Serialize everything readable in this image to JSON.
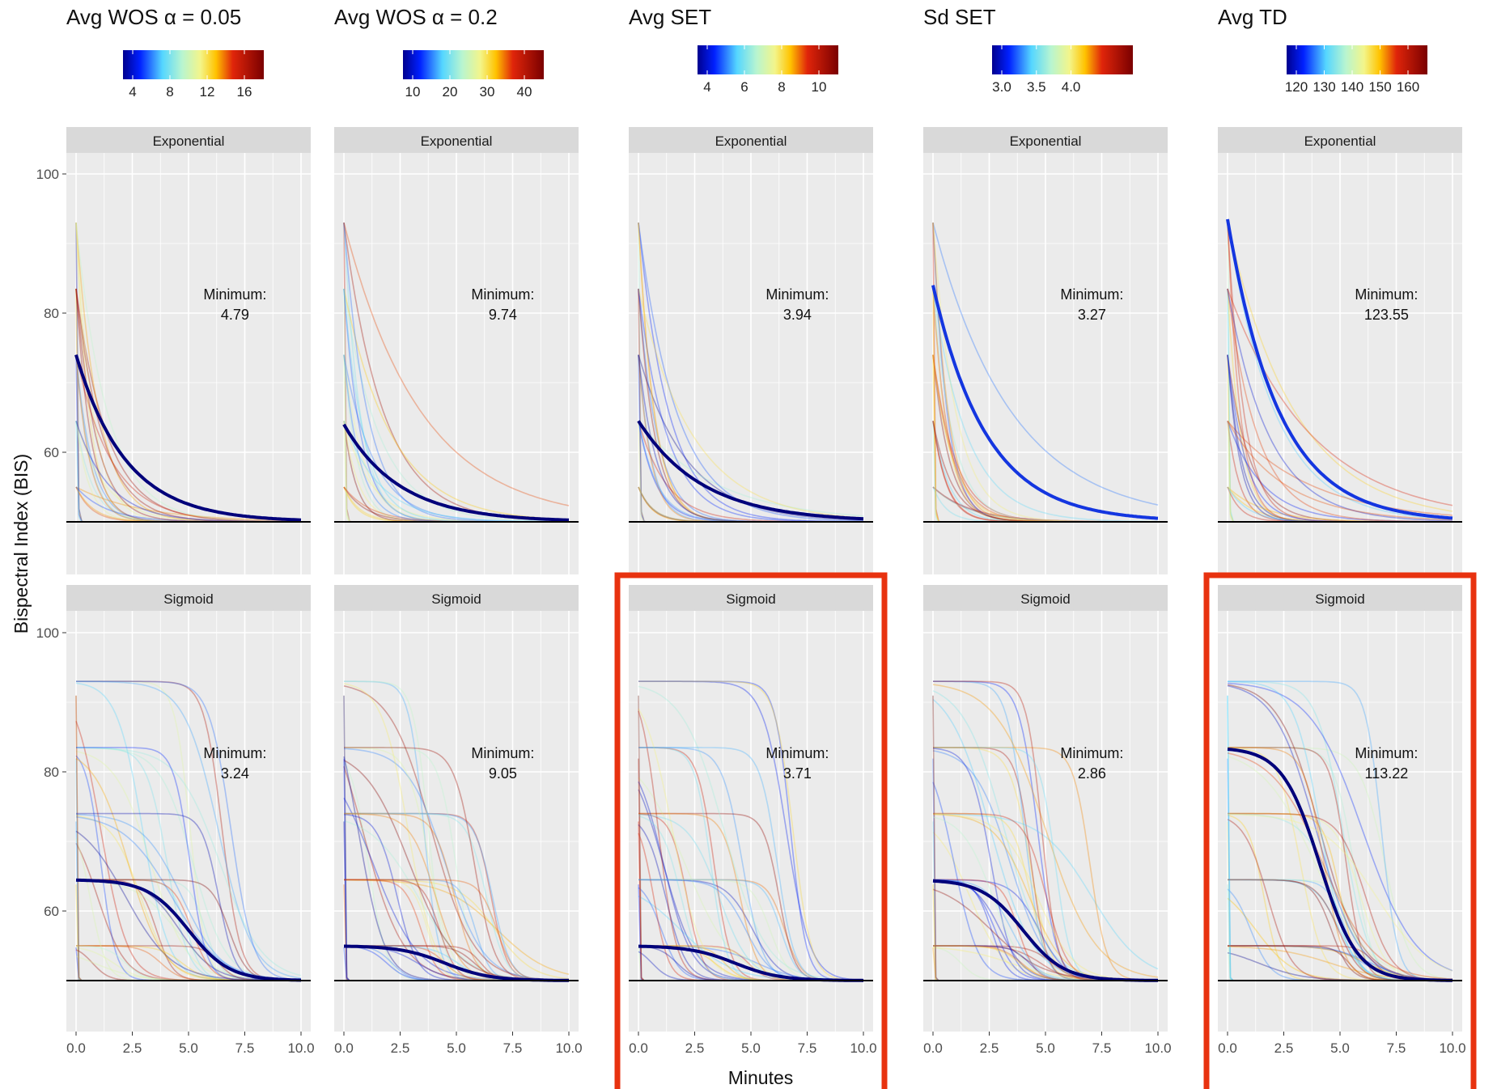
{
  "chart_data": {
    "type": "line",
    "x_label": "Minutes",
    "y_label": "Bispectral Index (BIS)",
    "x_range": [
      0,
      10
    ],
    "y_range": [
      45,
      105
    ],
    "x_ticks": [
      "0.0",
      "2.5",
      "5.0",
      "7.5",
      "10.0"
    ],
    "y_ticks": [
      "60",
      "80",
      "100"
    ],
    "baseline": 50,
    "row_labels": [
      "Exponential",
      "Sigmoid"
    ],
    "annotation_label": "Minimum:",
    "grid": true,
    "legend_position": "top",
    "highlight_color": "#e8320f",
    "columns": [
      {
        "title": "Avg WOS  α = 0.05",
        "colorbar_ticks": [
          "4",
          "8",
          "12",
          "16"
        ],
        "minimum": {
          "exponential": "4.79",
          "sigmoid": "3.24"
        },
        "highlighted": {
          "exponential": false,
          "sigmoid": false
        }
      },
      {
        "title": "Avg WOS  α = 0.2",
        "colorbar_ticks": [
          "10",
          "20",
          "30",
          "40"
        ],
        "minimum": {
          "exponential": "9.74",
          "sigmoid": "9.05"
        },
        "highlighted": {
          "exponential": false,
          "sigmoid": false
        }
      },
      {
        "title": "Avg SET",
        "colorbar_ticks": [
          "4",
          "6",
          "8",
          "10"
        ],
        "minimum": {
          "exponential": "3.94",
          "sigmoid": "3.71"
        },
        "highlighted": {
          "exponential": false,
          "sigmoid": true
        }
      },
      {
        "title": "Sd SET",
        "colorbar_ticks": [
          "3.0",
          "3.5",
          "4.0"
        ],
        "minimum": {
          "exponential": "3.27",
          "sigmoid": "2.86"
        },
        "highlighted": {
          "exponential": false,
          "sigmoid": false
        }
      },
      {
        "title": "Avg TD",
        "colorbar_ticks": [
          "120",
          "130",
          "140",
          "150",
          "160"
        ],
        "minimum": {
          "exponential": "123.55",
          "sigmoid": "113.22"
        },
        "highlighted": {
          "exponential": false,
          "sigmoid": true
        }
      }
    ],
    "best_curves": [
      {
        "exponential": {
          "start": 74,
          "rate": 0.45
        },
        "sigmoid": {
          "start": 64.5,
          "midpoint": 5.0,
          "steepness": 1.1
        }
      },
      {
        "exponential": {
          "start": 64,
          "rate": 0.4
        },
        "sigmoid": {
          "start": 55,
          "midpoint": 4.5,
          "steepness": 1.0
        }
      },
      {
        "exponential": {
          "start": 64.5,
          "rate": 0.35
        },
        "sigmoid": {
          "start": 55,
          "midpoint": 4.3,
          "steepness": 1.0
        }
      },
      {
        "exponential": {
          "start": 84,
          "rate": 0.42
        },
        "sigmoid": {
          "start": 64.5,
          "midpoint": 4.0,
          "steepness": 1.1
        }
      },
      {
        "exponential": {
          "start": 93.5,
          "rate": 0.44
        },
        "sigmoid": {
          "start": 83.5,
          "midpoint": 4.1,
          "steepness": 1.2
        }
      }
    ],
    "start_levels": [
      93,
      83.5,
      74,
      64.5,
      55
    ]
  }
}
